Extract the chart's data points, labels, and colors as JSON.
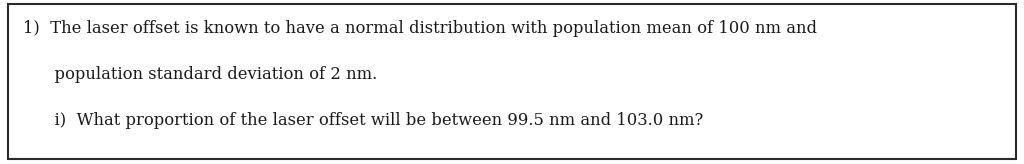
{
  "line1": "1)  The laser offset is known to have a normal distribution with population mean of 100 nm and",
  "line2": "      population standard deviation of 2 nm.",
  "line3": "      i)  What proportion of the laser offset will be between 99.5 nm and 103.0 nm?",
  "bg_color": "#ffffff",
  "border_color": "#2a2a2a",
  "text_color": "#1a1a1a",
  "font_size": 11.8,
  "fig_width": 10.24,
  "fig_height": 1.64,
  "dpi": 100
}
